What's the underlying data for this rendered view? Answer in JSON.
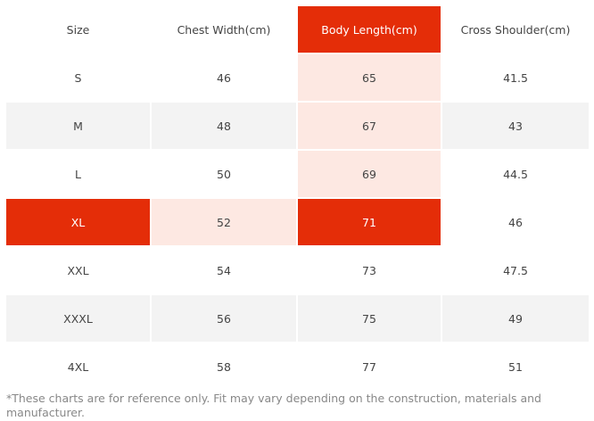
{
  "table": {
    "headers": [
      "Size",
      "Chest Width(cm)",
      "Body Length(cm)",
      "Cross Shoulder(cm)"
    ],
    "highlight": {
      "column": "Body Length(cm)",
      "row": "XL",
      "color": "#e42d08",
      "tint": "#fde8e2"
    },
    "rows": [
      [
        "S",
        "46",
        "65",
        "41.5"
      ],
      [
        "M",
        "48",
        "67",
        "43"
      ],
      [
        "L",
        "50",
        "69",
        "44.5"
      ],
      [
        "XL",
        "52",
        "71",
        "46"
      ],
      [
        "XXL",
        "54",
        "73",
        "47.5"
      ],
      [
        "XXXL",
        "56",
        "75",
        "49"
      ],
      [
        "4XL",
        "58",
        "77",
        "51"
      ]
    ]
  },
  "note": "*These charts are for reference only. Fit may vary depending on the construction, materials and manufacturer."
}
